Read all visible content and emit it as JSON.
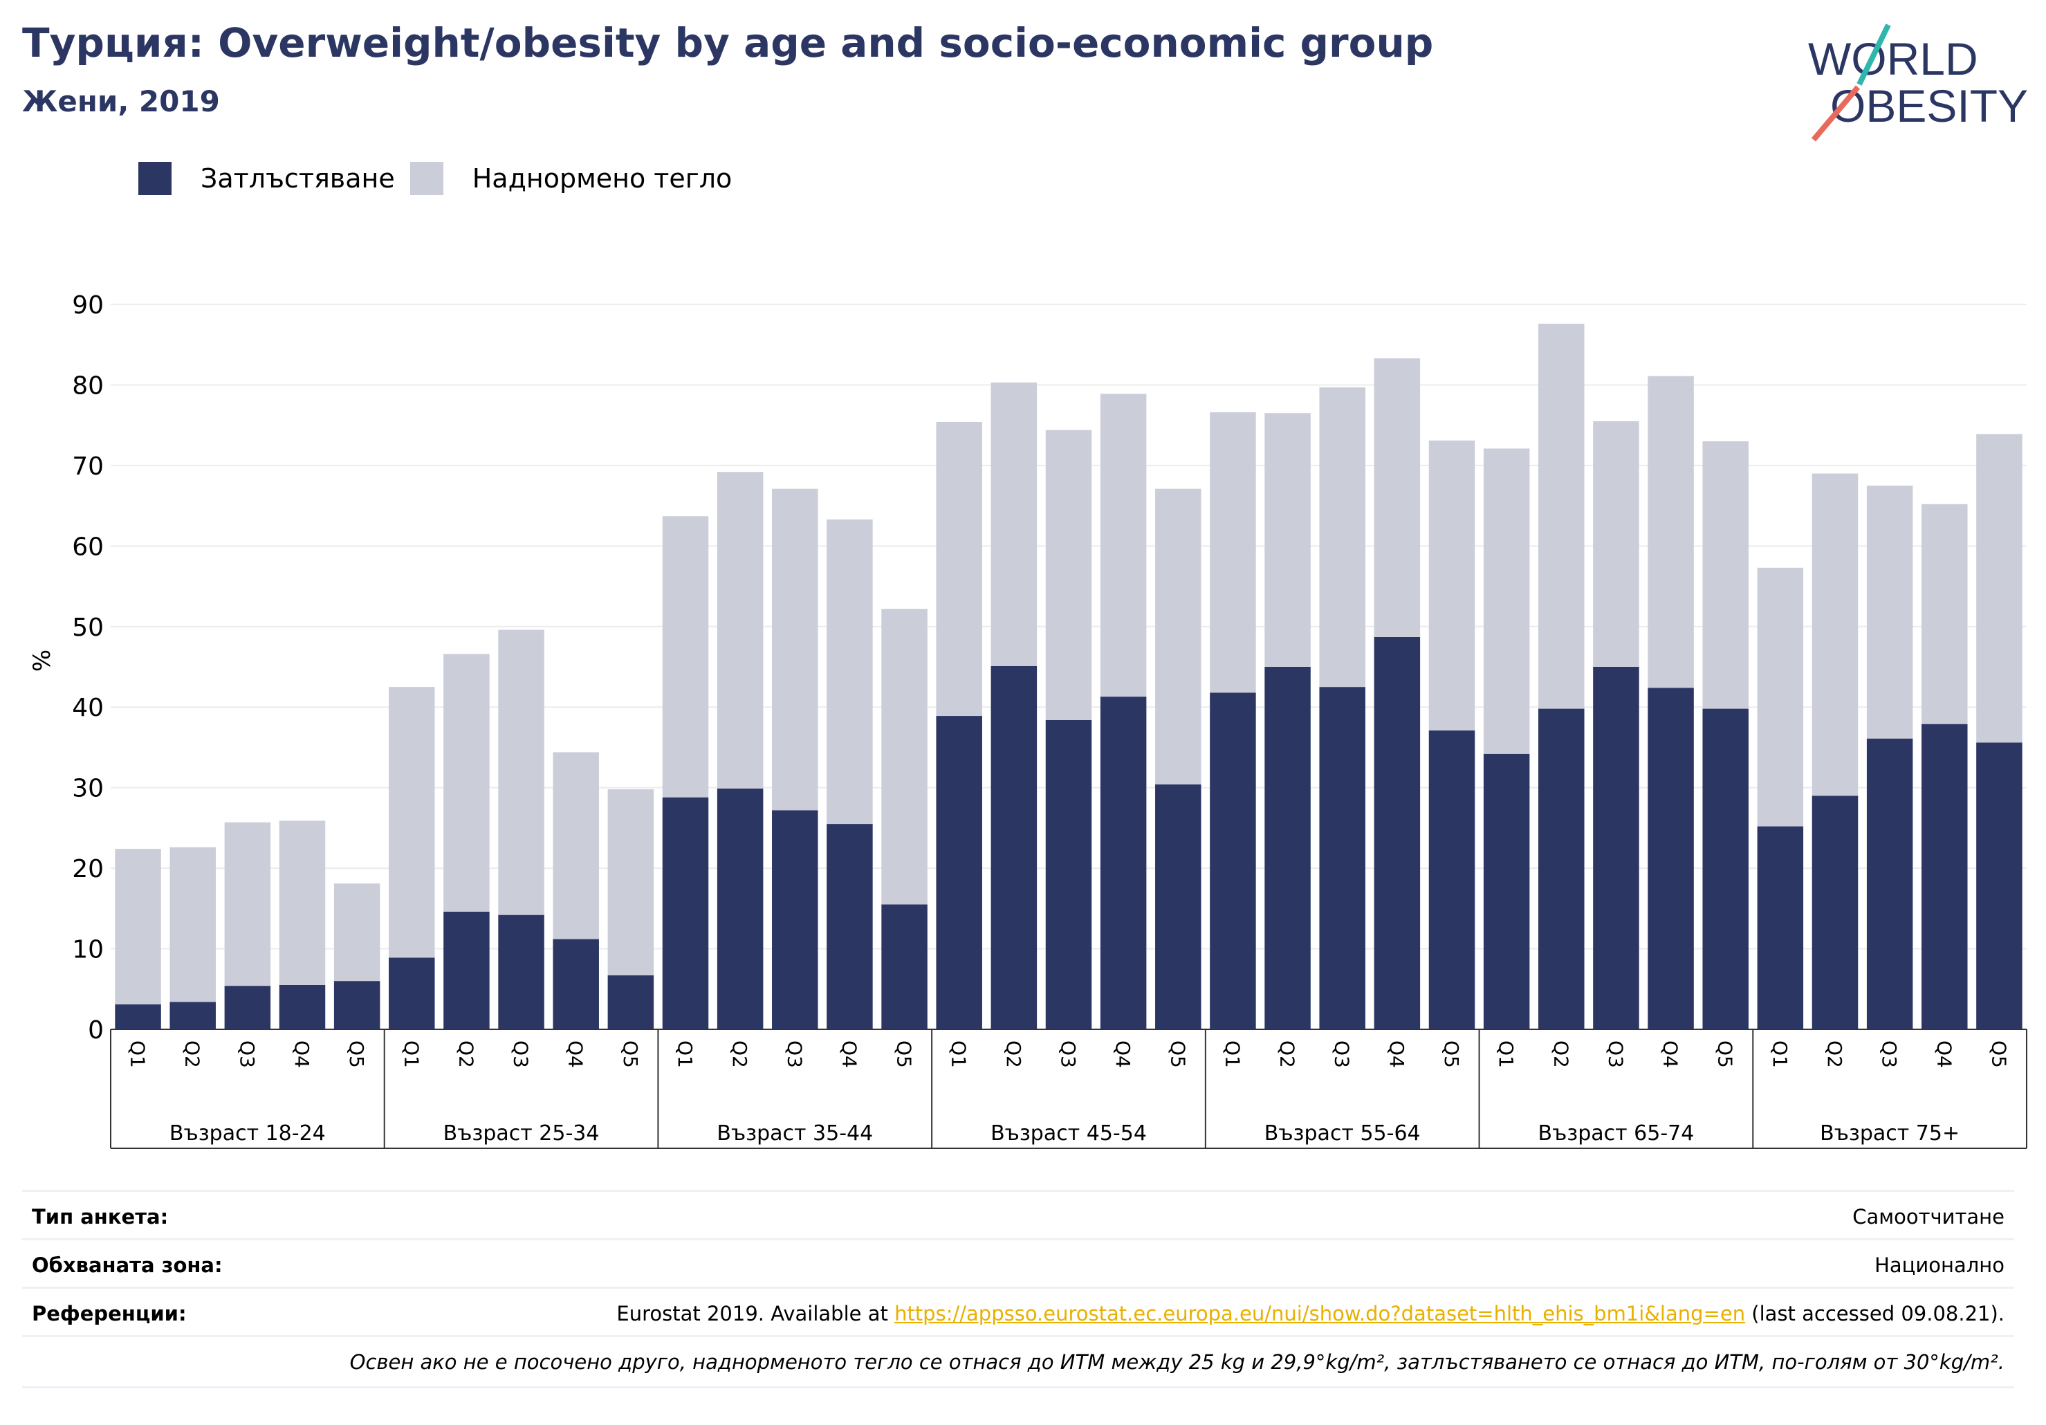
{
  "header": {
    "title": "Турция: Overweight/obesity by age and socio-economic group",
    "subtitle": "Жени, 2019"
  },
  "logo": {
    "line1": "WORLD",
    "line2": "OBESITY"
  },
  "colors": {
    "obesity": "#2b3663",
    "overweight": "#cbcdd9",
    "title": "#2b3663",
    "logo_teal": "#2fb6ad",
    "logo_coral": "#e86a5c",
    "link": "#e8b000"
  },
  "chart_data": {
    "type": "bar",
    "stacked": true,
    "title": "Турция: Overweight/obesity by age and socio-economic group",
    "subtitle": "Жени, 2019",
    "ylabel": "%",
    "ylim": [
      0,
      90
    ],
    "yticks": [
      0,
      10,
      20,
      30,
      40,
      50,
      60,
      70,
      80,
      90
    ],
    "grid": true,
    "legend_position": "top-left",
    "subcategories": [
      "Q1",
      "Q2",
      "Q3",
      "Q4",
      "Q5"
    ],
    "groups": [
      "Възраст 18-24",
      "Възраст 25-34",
      "Възраст 35-44",
      "Възраст 45-54",
      "Възраст 55-64",
      "Възраст 65-74",
      "Възраст 75+"
    ],
    "series": [
      {
        "name": "Затлъстяване",
        "color": "#2b3663",
        "values": [
          3.1,
          3.4,
          5.4,
          5.5,
          6.0,
          8.9,
          14.6,
          14.2,
          11.2,
          6.7,
          28.8,
          29.9,
          27.2,
          25.5,
          15.5,
          38.9,
          45.1,
          38.4,
          41.3,
          30.4,
          41.8,
          45.0,
          42.5,
          48.7,
          37.1,
          34.2,
          39.8,
          45.0,
          42.4,
          39.8,
          25.2,
          29.0,
          36.1,
          37.9,
          35.6
        ]
      },
      {
        "name": "Наднормено тегло",
        "color": "#cbcdd9",
        "values": [
          19.3,
          19.2,
          20.3,
          20.4,
          12.1,
          33.6,
          32.0,
          35.4,
          23.2,
          23.1,
          34.9,
          39.3,
          39.9,
          37.8,
          36.7,
          36.5,
          35.2,
          36.0,
          37.6,
          36.7,
          34.8,
          31.5,
          37.2,
          34.6,
          36.0,
          37.9,
          47.8,
          30.5,
          38.7,
          33.2,
          32.1,
          40.0,
          31.4,
          27.3,
          38.3
        ]
      }
    ]
  },
  "info": {
    "survey_type_label": "Тип анкета:",
    "survey_type_value": "Самоотчитане",
    "coverage_label": "Обхваната зона:",
    "coverage_value": "Национално",
    "references_label": "Референции:",
    "references_prefix": "Eurostat 2019. Available at ",
    "references_link": "https://appsso.eurostat.ec.europa.eu/nui/show.do?dataset=hlth_ehis_bm1i&lang=en",
    "references_suffix": " (last accessed 09.08.21).",
    "note": "Освен ако не е посочено друго, наднорменото тегло се отнася до ИТМ между 25 kg и 29,9°kg/m², затлъстяването се отнася до ИТМ, по-голям от 30°kg/m²."
  }
}
